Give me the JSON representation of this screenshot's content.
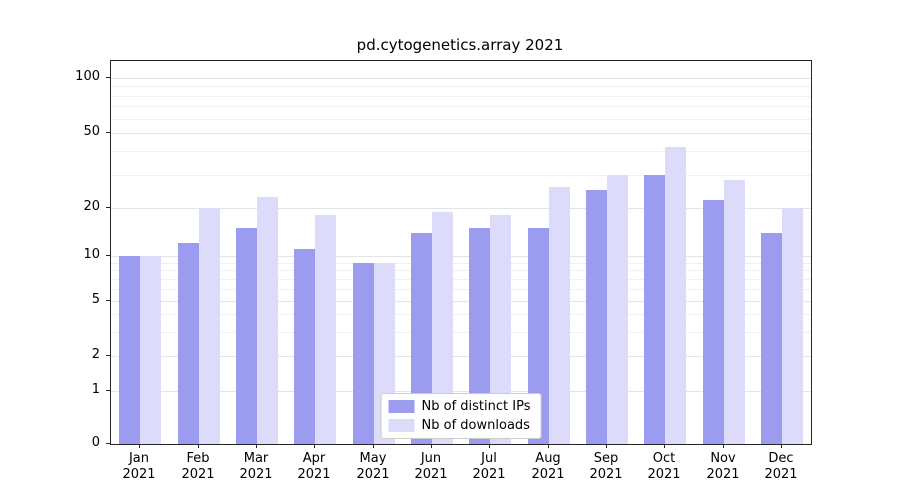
{
  "chart_data": {
    "type": "bar",
    "title": "pd.cytogenetics.array 2021",
    "categories": [
      "Jan",
      "Feb",
      "Mar",
      "Apr",
      "May",
      "Jun",
      "Jul",
      "Aug",
      "Sep",
      "Oct",
      "Nov",
      "Dec"
    ],
    "year_label": "2021",
    "series": [
      {
        "name": "Nb of distinct IPs",
        "color": "#9b9bef",
        "values": [
          10,
          12,
          15,
          11,
          9,
          14,
          15,
          15,
          25,
          30,
          22,
          14
        ]
      },
      {
        "name": "Nb of downloads",
        "color": "#dcdcfa",
        "values": [
          10,
          20,
          23,
          18,
          9,
          19,
          18,
          26,
          30,
          42,
          28,
          20
        ]
      }
    ],
    "yscale": "symlog",
    "yticks": [
      0,
      1,
      2,
      5,
      10,
      20,
      50,
      100
    ],
    "minor_yticks": [
      3,
      4,
      6,
      7,
      8,
      9,
      30,
      40,
      60,
      70,
      80,
      90
    ],
    "ylim": [
      0,
      110
    ],
    "grid": "horizontal",
    "legend_position": "lower center"
  }
}
